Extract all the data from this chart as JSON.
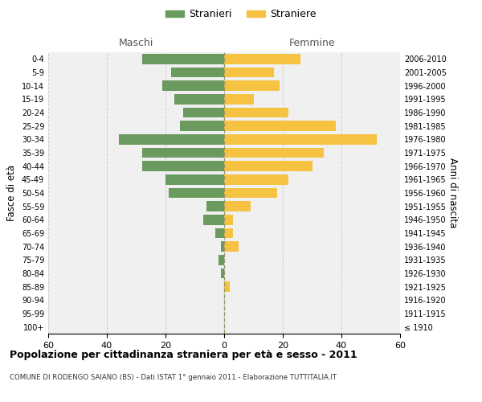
{
  "age_groups": [
    "100+",
    "95-99",
    "90-94",
    "85-89",
    "80-84",
    "75-79",
    "70-74",
    "65-69",
    "60-64",
    "55-59",
    "50-54",
    "45-49",
    "40-44",
    "35-39",
    "30-34",
    "25-29",
    "20-24",
    "15-19",
    "10-14",
    "5-9",
    "0-4"
  ],
  "birth_years": [
    "≤ 1910",
    "1911-1915",
    "1916-1920",
    "1921-1925",
    "1926-1930",
    "1931-1935",
    "1936-1940",
    "1941-1945",
    "1946-1950",
    "1951-1955",
    "1956-1960",
    "1961-1965",
    "1966-1970",
    "1971-1975",
    "1976-1980",
    "1981-1985",
    "1986-1990",
    "1991-1995",
    "1996-2000",
    "2001-2005",
    "2006-2010"
  ],
  "males": [
    0,
    0,
    0,
    0,
    1,
    2,
    1,
    3,
    7,
    6,
    19,
    20,
    28,
    28,
    36,
    15,
    14,
    17,
    21,
    18,
    28
  ],
  "females": [
    0,
    0,
    0,
    2,
    0,
    0,
    5,
    3,
    3,
    9,
    18,
    22,
    30,
    34,
    52,
    38,
    22,
    10,
    19,
    17,
    26
  ],
  "male_color": "#6b9a5e",
  "female_color": "#f5c242",
  "background_color": "#f0f0f0",
  "grid_color": "#cccccc",
  "dashed_line_color": "#999966",
  "title": "Popolazione per cittadinanza straniera per età e sesso - 2011",
  "subtitle": "COMUNE DI RODENGO SAIANO (BS) - Dati ISTAT 1° gennaio 2011 - Elaborazione TUTTITALIA.IT",
  "xlabel_left": "Maschi",
  "xlabel_right": "Femmine",
  "ylabel_left": "Fasce di età",
  "ylabel_right": "Anni di nascita",
  "xlim": 60,
  "legend_stranieri": "Stranieri",
  "legend_straniere": "Straniere"
}
